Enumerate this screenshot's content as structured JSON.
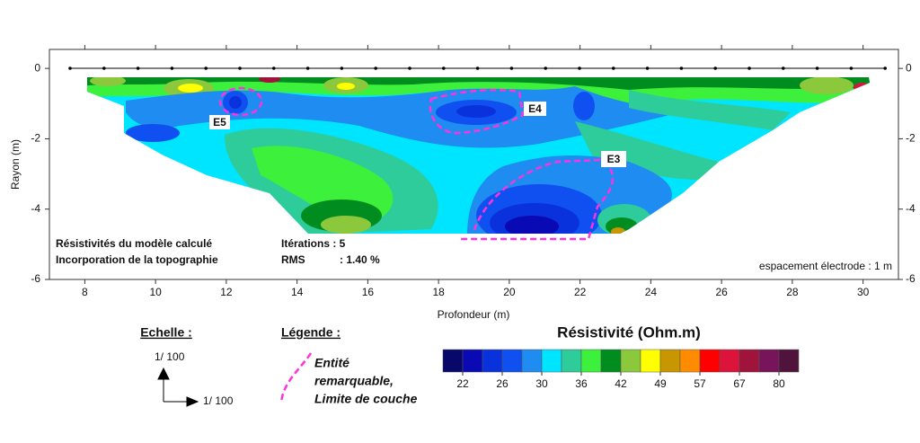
{
  "chart_data": {
    "type": "contour",
    "xlabel": "Profondeur (m)",
    "ylabel": "Rayon (m)",
    "xlim": [
      7,
      31
    ],
    "xticks": [
      8,
      10,
      12,
      14,
      16,
      18,
      20,
      22,
      24,
      26,
      28,
      30
    ],
    "ylim": [
      -6,
      0.54
    ],
    "yticks": [
      0,
      -2,
      -4,
      -6
    ],
    "y2lim": [
      -6,
      0.54
    ],
    "y2ticks": [
      0,
      -2,
      -4,
      -6
    ],
    "annotations": [
      "Résistivités du modèle calculé",
      "Incorporation de la topographie",
      "Itérations : 5",
      "RMS",
      ": 1.40 %",
      "espacement électrode : 1 m"
    ],
    "entities": [
      "E5",
      "E4",
      "E3"
    ],
    "colorbar": {
      "title": "Résistivité (Ohm.m)",
      "ticks": [
        22,
        26,
        30,
        36,
        42,
        49,
        57,
        67,
        80
      ],
      "colors": [
        "#08086b",
        "#0a0ab4",
        "#0a32dc",
        "#1050f0",
        "#1e8cf0",
        "#00e5ff",
        "#2ecc9a",
        "#3cf03c",
        "#008c1e",
        "#8cc83c",
        "#ffff00",
        "#c89600",
        "#ff8c00",
        "#ff0000",
        "#dc143c",
        "#a0143c",
        "#78145a",
        "#50143c"
      ]
    },
    "scale": {
      "title": "Echelle :",
      "vertical": "1/ 100",
      "horizontal": "1/ 100"
    },
    "legend": {
      "title": "Légende :",
      "label": [
        "Entité",
        "remarquable,",
        "Limite de couche"
      ],
      "color": "#ff33dd"
    }
  }
}
